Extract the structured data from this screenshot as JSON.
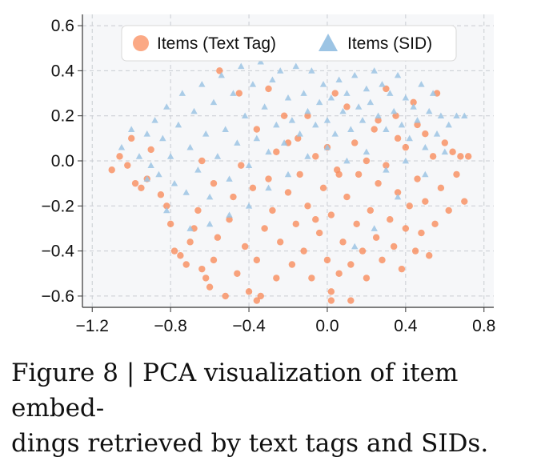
{
  "chart_data": {
    "type": "scatter",
    "title": "",
    "xlabel": "",
    "ylabel": "",
    "xlim": [
      -1.25,
      0.85
    ],
    "ylim": [
      -0.65,
      0.65
    ],
    "x_ticks": [
      -1.2,
      -0.8,
      -0.4,
      0.0,
      0.4,
      0.8
    ],
    "x_tick_labels": [
      "−1.2",
      "−0.8",
      "−0.4",
      "0.0",
      "0.4",
      "0.8"
    ],
    "y_ticks": [
      0.6,
      0.4,
      0.2,
      0.0,
      -0.2,
      -0.4,
      -0.6
    ],
    "y_tick_labels": [
      "0.6",
      "0.4",
      "0.2",
      "0.0",
      "−0.2",
      "−0.4",
      "−0.6"
    ],
    "grid": true,
    "legend_position": "top-center",
    "colors": {
      "text_tag": "#f98c5c",
      "sid": "#9cc4e4",
      "plot_bg": "#f6f7f9",
      "grid": "#c9ccd2"
    },
    "series": [
      {
        "name": "Items (Text Tag)",
        "marker": "circle",
        "points": [
          [
            -1.1,
            -0.04
          ],
          [
            -1.06,
            0.02
          ],
          [
            -1.02,
            -0.02
          ],
          [
            -1.0,
            0.1
          ],
          [
            -0.98,
            -0.1
          ],
          [
            -0.95,
            -0.12
          ],
          [
            -0.92,
            -0.08
          ],
          [
            -0.9,
            0.05
          ],
          [
            -0.85,
            -0.15
          ],
          [
            -0.82,
            -0.2
          ],
          [
            -0.8,
            -0.28
          ],
          [
            -0.78,
            -0.4
          ],
          [
            -0.75,
            -0.42
          ],
          [
            -0.72,
            -0.46
          ],
          [
            -0.7,
            -0.36
          ],
          [
            -0.68,
            -0.3
          ],
          [
            -0.66,
            -0.22
          ],
          [
            -0.64,
            -0.48
          ],
          [
            -0.62,
            -0.52
          ],
          [
            -0.6,
            -0.56
          ],
          [
            -0.58,
            -0.44
          ],
          [
            -0.56,
            -0.34
          ],
          [
            -0.55,
            0.4
          ],
          [
            -0.52,
            -0.6
          ],
          [
            -0.5,
            -0.26
          ],
          [
            -0.48,
            -0.16
          ],
          [
            -0.46,
            -0.5
          ],
          [
            -0.45,
            0.3
          ],
          [
            -0.42,
            -0.38
          ],
          [
            -0.4,
            -0.58
          ],
          [
            -0.38,
            -0.12
          ],
          [
            -0.36,
            -0.44
          ],
          [
            -0.34,
            -0.6
          ],
          [
            -0.32,
            -0.3
          ],
          [
            -0.3,
            0.32
          ],
          [
            -0.3,
            -0.08
          ],
          [
            -0.28,
            -0.22
          ],
          [
            -0.26,
            -0.52
          ],
          [
            -0.24,
            -0.36
          ],
          [
            -0.22,
            0.2
          ],
          [
            -0.2,
            -0.14
          ],
          [
            -0.18,
            -0.46
          ],
          [
            -0.16,
            -0.28
          ],
          [
            -0.15,
            0.1
          ],
          [
            -0.14,
            -0.06
          ],
          [
            -0.12,
            -0.4
          ],
          [
            -0.1,
            -0.2
          ],
          [
            -0.08,
            -0.52
          ],
          [
            -0.06,
            0.02
          ],
          [
            -0.04,
            -0.32
          ],
          [
            -0.02,
            -0.12
          ],
          [
            0.0,
            -0.44
          ],
          [
            0.0,
            0.06
          ],
          [
            0.02,
            -0.58
          ],
          [
            0.02,
            -0.24
          ],
          [
            0.04,
            0.3
          ],
          [
            0.05,
            -0.04
          ],
          [
            0.06,
            -0.5
          ],
          [
            0.08,
            -0.36
          ],
          [
            0.1,
            -0.16
          ],
          [
            0.12,
            -0.46
          ],
          [
            0.14,
            0.08
          ],
          [
            0.15,
            -0.28
          ],
          [
            0.16,
            -0.06
          ],
          [
            0.18,
            -0.4
          ],
          [
            0.2,
            0.0
          ],
          [
            0.2,
            -0.52
          ],
          [
            0.22,
            -0.22
          ],
          [
            0.24,
            0.14
          ],
          [
            0.25,
            -0.34
          ],
          [
            0.26,
            -0.1
          ],
          [
            0.28,
            -0.44
          ],
          [
            0.3,
            0.32
          ],
          [
            0.3,
            -0.02
          ],
          [
            0.32,
            -0.26
          ],
          [
            0.34,
            -0.38
          ],
          [
            0.35,
            0.2
          ],
          [
            0.36,
            -0.14
          ],
          [
            0.38,
            -0.48
          ],
          [
            0.4,
            0.06
          ],
          [
            0.4,
            -0.3
          ],
          [
            0.42,
            -0.2
          ],
          [
            0.44,
            0.26
          ],
          [
            0.45,
            -0.4
          ],
          [
            0.46,
            -0.08
          ],
          [
            0.48,
            -0.32
          ],
          [
            0.5,
            0.12
          ],
          [
            0.5,
            -0.18
          ],
          [
            0.52,
            -0.42
          ],
          [
            0.54,
            0.02
          ],
          [
            0.55,
            -0.28
          ],
          [
            0.56,
            0.3
          ],
          [
            0.58,
            -0.12
          ],
          [
            0.6,
            0.08
          ],
          [
            0.62,
            -0.22
          ],
          [
            0.64,
            0.04
          ],
          [
            0.66,
            -0.06
          ],
          [
            0.68,
            0.02
          ],
          [
            0.7,
            -0.18
          ],
          [
            0.72,
            0.02
          ],
          [
            -0.2,
            0.08
          ],
          [
            -0.1,
            0.2
          ],
          [
            0.1,
            0.24
          ],
          [
            0.06,
            -0.06
          ],
          [
            -0.36,
            0.14
          ],
          [
            -0.26,
            0.04
          ],
          [
            -0.44,
            -0.02
          ],
          [
            -0.58,
            -0.1
          ],
          [
            -0.64,
            0.0
          ],
          [
            0.26,
            0.18
          ],
          [
            0.36,
            0.1
          ],
          [
            0.46,
            0.16
          ],
          [
            -0.06,
            -0.26
          ],
          [
            0.12,
            -0.62
          ],
          [
            -0.36,
            -0.62
          ],
          [
            0.02,
            -0.62
          ]
        ]
      },
      {
        "name": "Items (SID)",
        "marker": "triangle",
        "points": [
          [
            -1.05,
            0.06
          ],
          [
            -1.0,
            0.14
          ],
          [
            -0.96,
            0.02
          ],
          [
            -0.92,
            0.12
          ],
          [
            -0.9,
            -0.02
          ],
          [
            -0.88,
            0.18
          ],
          [
            -0.86,
            -0.06
          ],
          [
            -0.84,
            0.1
          ],
          [
            -0.82,
            0.24
          ],
          [
            -0.8,
            0.02
          ],
          [
            -0.78,
            -0.1
          ],
          [
            -0.76,
            0.16
          ],
          [
            -0.74,
            0.3
          ],
          [
            -0.72,
            -0.14
          ],
          [
            -0.7,
            0.06
          ],
          [
            -0.68,
            0.22
          ],
          [
            -0.66,
            -0.04
          ],
          [
            -0.64,
            0.34
          ],
          [
            -0.62,
            0.12
          ],
          [
            -0.6,
            -0.16
          ],
          [
            -0.58,
            0.26
          ],
          [
            -0.56,
            0.02
          ],
          [
            -0.54,
            0.38
          ],
          [
            -0.52,
            0.14
          ],
          [
            -0.5,
            -0.08
          ],
          [
            -0.48,
            0.3
          ],
          [
            -0.46,
            0.08
          ],
          [
            -0.44,
            0.42
          ],
          [
            -0.42,
            0.2
          ],
          [
            -0.4,
            -0.02
          ],
          [
            -0.38,
            0.34
          ],
          [
            -0.36,
            0.1
          ],
          [
            -0.34,
            0.44
          ],
          [
            -0.33,
            0.48
          ],
          [
            -0.32,
            0.24
          ],
          [
            -0.3,
            0.04
          ],
          [
            -0.28,
            0.36
          ],
          [
            -0.26,
            0.16
          ],
          [
            -0.24,
            0.4
          ],
          [
            -0.22,
            0.08
          ],
          [
            -0.2,
            0.28
          ],
          [
            -0.18,
            0.18
          ],
          [
            -0.16,
            0.42
          ],
          [
            -0.14,
            0.12
          ],
          [
            -0.12,
            0.3
          ],
          [
            -0.1,
            0.22
          ],
          [
            -0.08,
            0.4
          ],
          [
            -0.06,
            0.16
          ],
          [
            -0.04,
            0.26
          ],
          [
            -0.02,
            0.34
          ],
          [
            0.0,
            0.18
          ],
          [
            0.02,
            0.28
          ],
          [
            0.04,
            0.12
          ],
          [
            0.06,
            0.36
          ],
          [
            0.08,
            0.22
          ],
          [
            0.1,
            0.3
          ],
          [
            0.12,
            0.14
          ],
          [
            0.14,
            0.38
          ],
          [
            0.16,
            0.24
          ],
          [
            0.18,
            0.18
          ],
          [
            0.2,
            0.32
          ],
          [
            0.22,
            0.26
          ],
          [
            0.24,
            0.4
          ],
          [
            0.26,
            0.2
          ],
          [
            0.28,
            0.34
          ],
          [
            0.3,
            0.14
          ],
          [
            0.32,
            0.3
          ],
          [
            0.34,
            0.22
          ],
          [
            0.36,
            0.38
          ],
          [
            0.38,
            0.16
          ],
          [
            0.4,
            0.28
          ],
          [
            0.42,
            0.1
          ],
          [
            0.44,
            0.24
          ],
          [
            0.46,
            0.18
          ],
          [
            0.48,
            0.34
          ],
          [
            0.5,
            0.06
          ],
          [
            0.52,
            0.22
          ],
          [
            0.54,
            0.3
          ],
          [
            0.56,
            0.12
          ],
          [
            0.58,
            0.2
          ],
          [
            0.6,
            0.04
          ],
          [
            0.62,
            0.16
          ],
          [
            0.66,
            0.2
          ],
          [
            0.7,
            0.2
          ],
          [
            -0.4,
            -0.2
          ],
          [
            -0.3,
            -0.12
          ],
          [
            -0.2,
            -0.06
          ],
          [
            -0.1,
            0.02
          ],
          [
            0.0,
            0.06
          ],
          [
            0.1,
            0.0
          ],
          [
            0.2,
            0.04
          ],
          [
            0.3,
            -0.04
          ],
          [
            0.4,
            0.0
          ],
          [
            0.5,
            -0.06
          ],
          [
            -0.5,
            -0.24
          ],
          [
            -0.6,
            -0.28
          ],
          [
            -0.7,
            -0.3
          ],
          [
            0.14,
            -0.38
          ],
          [
            0.24,
            -0.3
          ],
          [
            -0.82,
            -0.22
          ],
          [
            -0.92,
            -0.08
          ],
          [
            0.36,
            -0.16
          ]
        ]
      }
    ]
  },
  "caption": {
    "line1": "Figure 8 | PCA visualization of item embed-",
    "line2": "dings retrieved by text tags and SIDs."
  }
}
